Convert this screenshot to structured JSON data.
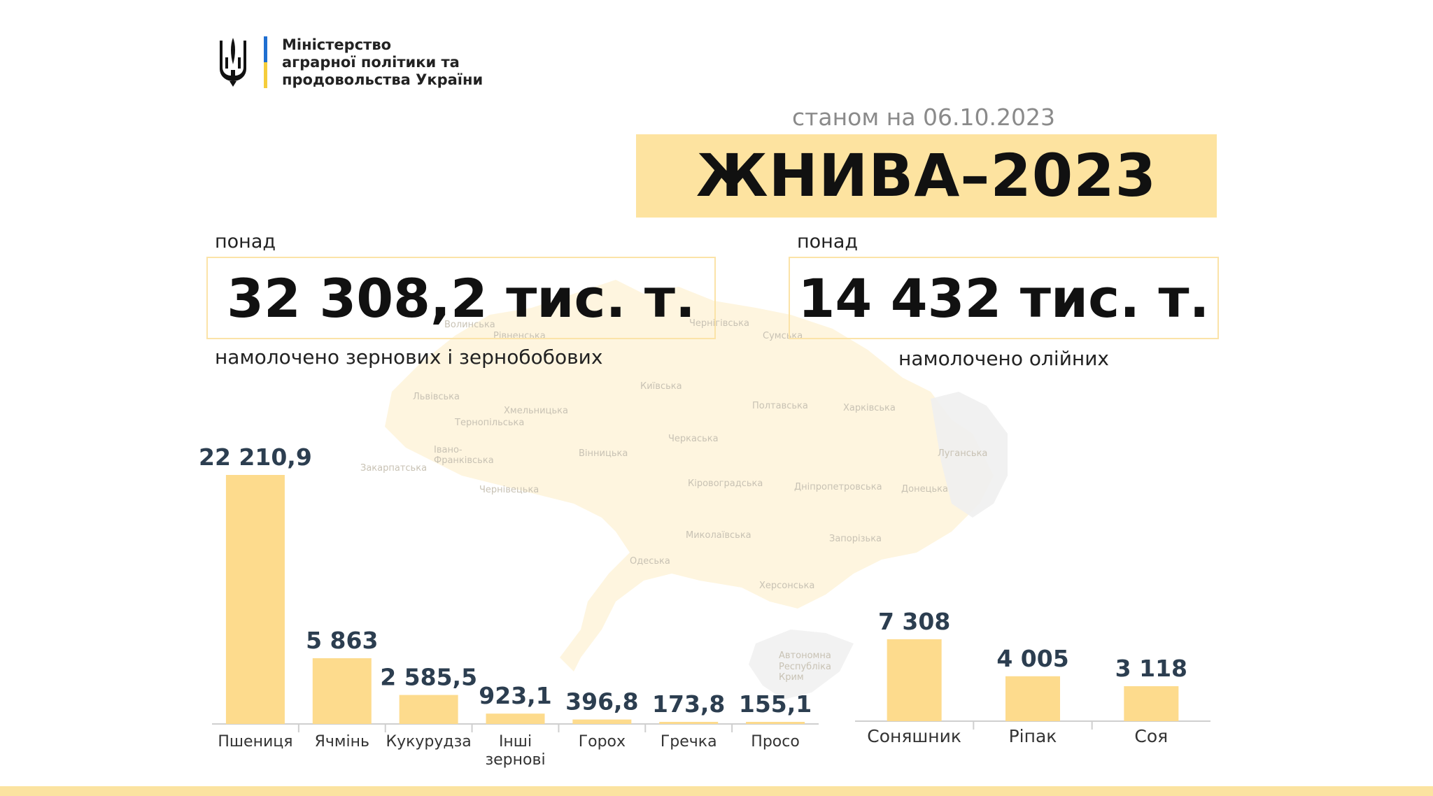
{
  "header": {
    "ministry_line1": "Міністерство",
    "ministry_line2": "аграрної політики та",
    "ministry_line3": "продовольства України",
    "date_line": "станом на 06.10.2023",
    "title": "ЖНИВА–2023"
  },
  "stats": {
    "grain_prefix": "понад",
    "grain_value": "32 308,2 тис. т.",
    "grain_caption": "намолочено зернових і зернобобових",
    "oil_prefix": "понад",
    "oil_value": "14 432 тис. т.",
    "oil_caption": "намолочено олійних"
  },
  "map_labels": [
    "Волинська",
    "Рівненська",
    "Чернігівська",
    "Сумська",
    "Київська",
    "Львівська",
    "Хмельницька",
    "Тернопільська",
    "Полтавська",
    "Харківська",
    "Черкаська",
    "Івано-",
    "Франківська",
    "Вінницька",
    "Луганська",
    "Закарпатська",
    "Кіровоградська",
    "Дніпропетровська",
    "Донецька",
    "Чернівецька",
    "Миколаївська",
    "Запорізька",
    "Одеська",
    "Херсонська",
    "Автономна",
    "Республіка",
    "Крим"
  ],
  "colors": {
    "bar": "#fddb8d",
    "accent_bg": "#fde3a0",
    "value_text": "#2c3e50",
    "box_border": "#fbe3a8"
  },
  "chart_data": [
    {
      "type": "bar",
      "categories": [
        "Пшениця",
        "Ячмінь",
        "Кукурудза",
        "Інші зернові",
        "Горох",
        "Гречка",
        "Просо"
      ],
      "category_lines": [
        [
          "Пшениця"
        ],
        [
          "Ячмінь"
        ],
        [
          "Кукурудза"
        ],
        [
          "Інші",
          "зернові"
        ],
        [
          "Горох"
        ],
        [
          "Гречка"
        ],
        [
          "Просо"
        ]
      ],
      "values": [
        22210.9,
        5863,
        2585.5,
        923.1,
        396.8,
        173.8,
        155.1
      ],
      "value_labels": [
        "22 210,9",
        "5 863",
        "2 585,5",
        "923,1",
        "396,8",
        "173,8",
        "155,1"
      ]
    },
    {
      "type": "bar",
      "categories": [
        "Соняшник",
        "Ріпак",
        "Соя"
      ],
      "category_lines": [
        [
          "Соняшник"
        ],
        [
          "Ріпак"
        ],
        [
          "Соя"
        ]
      ],
      "values": [
        7308,
        4005,
        3118
      ],
      "value_labels": [
        "7 308",
        "4 005",
        "3 118"
      ]
    }
  ]
}
